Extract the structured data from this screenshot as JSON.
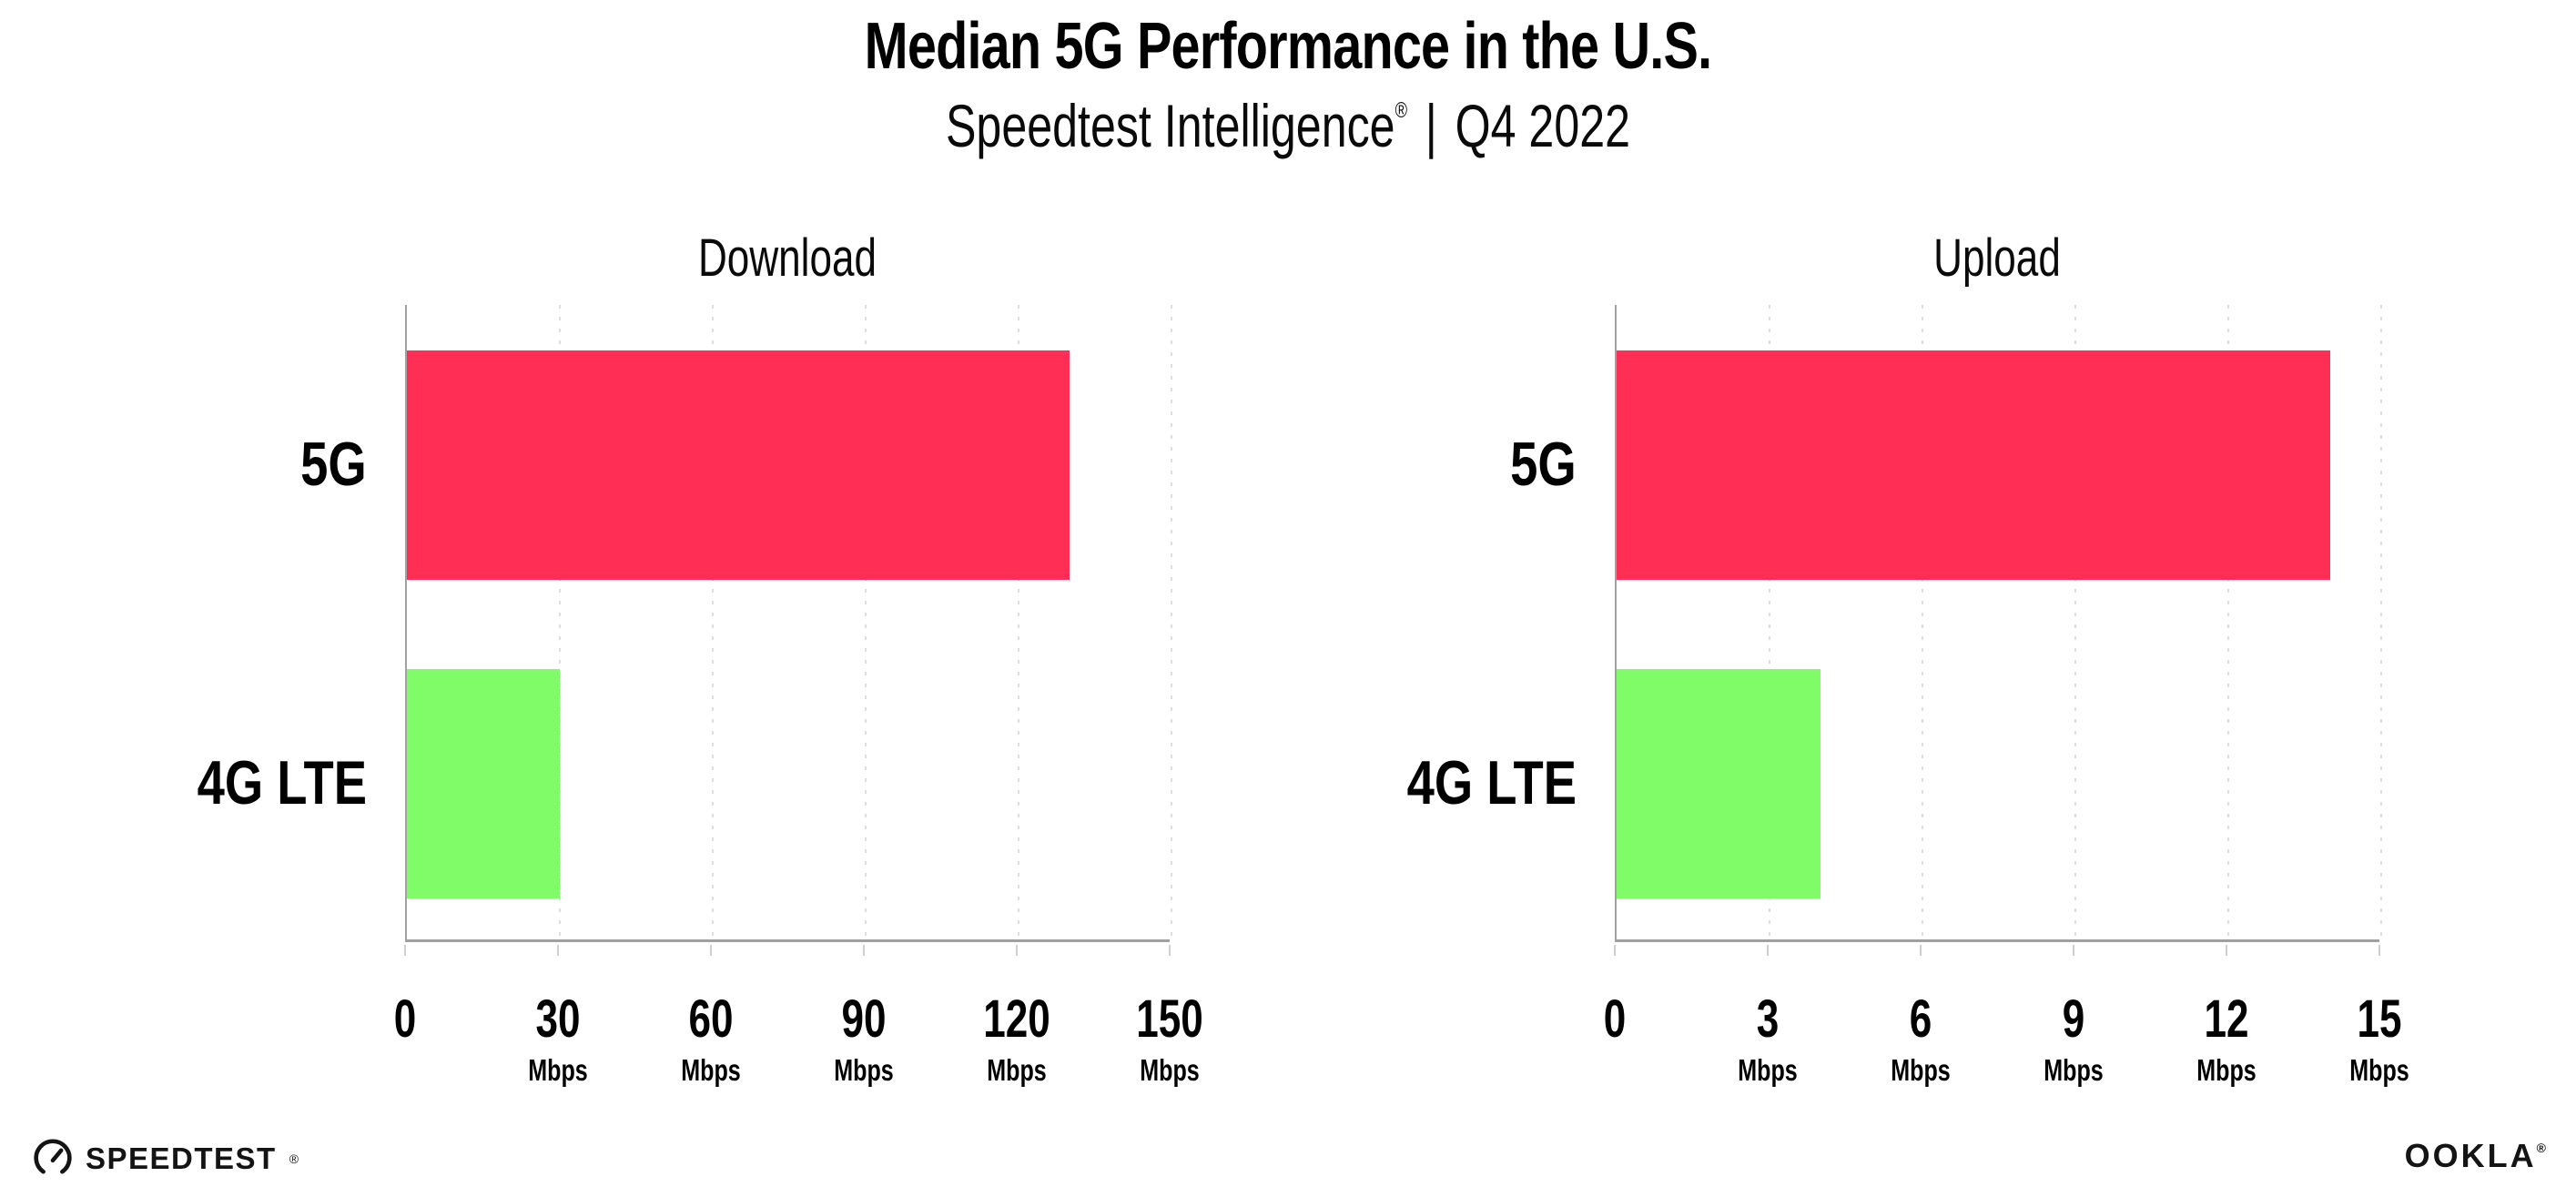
{
  "header": {
    "title": "Median 5G Performance in the U.S.",
    "subtitle": {
      "brand": "Speedtest Intelligence",
      "mark": "®",
      "separator": "|",
      "period": "Q4 2022"
    }
  },
  "chart_data": [
    {
      "type": "bar",
      "orientation": "horizontal",
      "title": "Download",
      "categories": [
        "5G",
        "4G LTE"
      ],
      "values": [
        130,
        30
      ],
      "unit": "Mbps",
      "xlim": [
        0,
        150
      ],
      "xticks": [
        0,
        30,
        60,
        90,
        120,
        150
      ],
      "bar_colors": [
        "#FF2E55",
        "#7FFC68"
      ],
      "grid": "vertical-dotted",
      "legend": "none"
    },
    {
      "type": "bar",
      "orientation": "horizontal",
      "title": "Upload",
      "categories": [
        "5G",
        "4G LTE"
      ],
      "values": [
        14,
        4
      ],
      "unit": "Mbps",
      "xlim": [
        0,
        15
      ],
      "xticks": [
        0,
        3,
        6,
        9,
        12,
        15
      ],
      "bar_colors": [
        "#FF2E55",
        "#7FFC68"
      ],
      "grid": "vertical-dotted",
      "legend": "none"
    }
  ],
  "colors": {
    "bar_5g": "#FF2E55",
    "bar_4g_lte": "#7FFC68",
    "axis": "#a1a1a1",
    "gridline": "#dddde3",
    "text": "#000000"
  },
  "footer": {
    "speedtest": {
      "icon": "gauge-icon",
      "label": "SPEEDTEST",
      "mark": "®"
    },
    "ookla": {
      "label": "OOKLA",
      "mark": "®"
    }
  }
}
